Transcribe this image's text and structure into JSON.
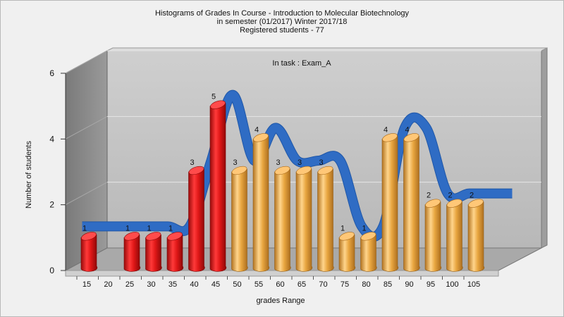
{
  "chart_data": {
    "type": "bar",
    "title_lines": [
      "Histograms of Grades  In Course - Introduction to Molecular Biotechnology",
      "in semester  (01/2017) Winter 2017/18",
      "Registered students - 77"
    ],
    "annotation": "In task : Exam_A",
    "xlabel": "grades Range",
    "ylabel": "Number of students",
    "x_ticks": [
      "15",
      "20",
      "25",
      "30",
      "35",
      "40",
      "45",
      "50",
      "55",
      "60",
      "65",
      "70",
      "75",
      "80",
      "85",
      "90",
      "95",
      "100",
      "105"
    ],
    "y_ticks": [
      "0",
      "2",
      "4",
      "6"
    ],
    "ylim": [
      0,
      6
    ],
    "bars": [
      {
        "label": "1",
        "value": 1,
        "slot": 15
      },
      {
        "label": "1",
        "value": 1,
        "slot": 25
      },
      {
        "label": "1",
        "value": 1,
        "slot": 30
      },
      {
        "label": "1",
        "value": 1,
        "slot": 35
      },
      {
        "label": "3",
        "value": 3,
        "slot": 40
      },
      {
        "label": "5",
        "value": 5,
        "slot": 45
      },
      {
        "label": "3",
        "value": 3,
        "slot": 50
      },
      {
        "label": "4",
        "value": 4,
        "slot": 55
      },
      {
        "label": "3",
        "value": 3,
        "slot": 60
      },
      {
        "label": "3",
        "value": 3,
        "slot": 65
      },
      {
        "label": "3",
        "value": 3,
        "slot": 70
      },
      {
        "label": "1",
        "value": 1,
        "slot": 75
      },
      {
        "label": "1",
        "value": 1,
        "slot": 80
      },
      {
        "label": "4",
        "value": 4,
        "slot": 85
      },
      {
        "label": "4",
        "value": 4,
        "slot": 90
      },
      {
        "label": "2",
        "value": 2,
        "slot": 95
      },
      {
        "label": "2",
        "value": 2,
        "slot": 100
      },
      {
        "label": "2",
        "value": 2,
        "slot": 105
      }
    ],
    "fail_threshold": 50,
    "colors": {
      "fail": "#e01818",
      "pass": "#e8a640",
      "trend": "#2f6cc4",
      "wall": "#bdbdbd",
      "left_wall": "#8c8c8c",
      "floor": "#aaaaaa"
    },
    "grid": true
  }
}
